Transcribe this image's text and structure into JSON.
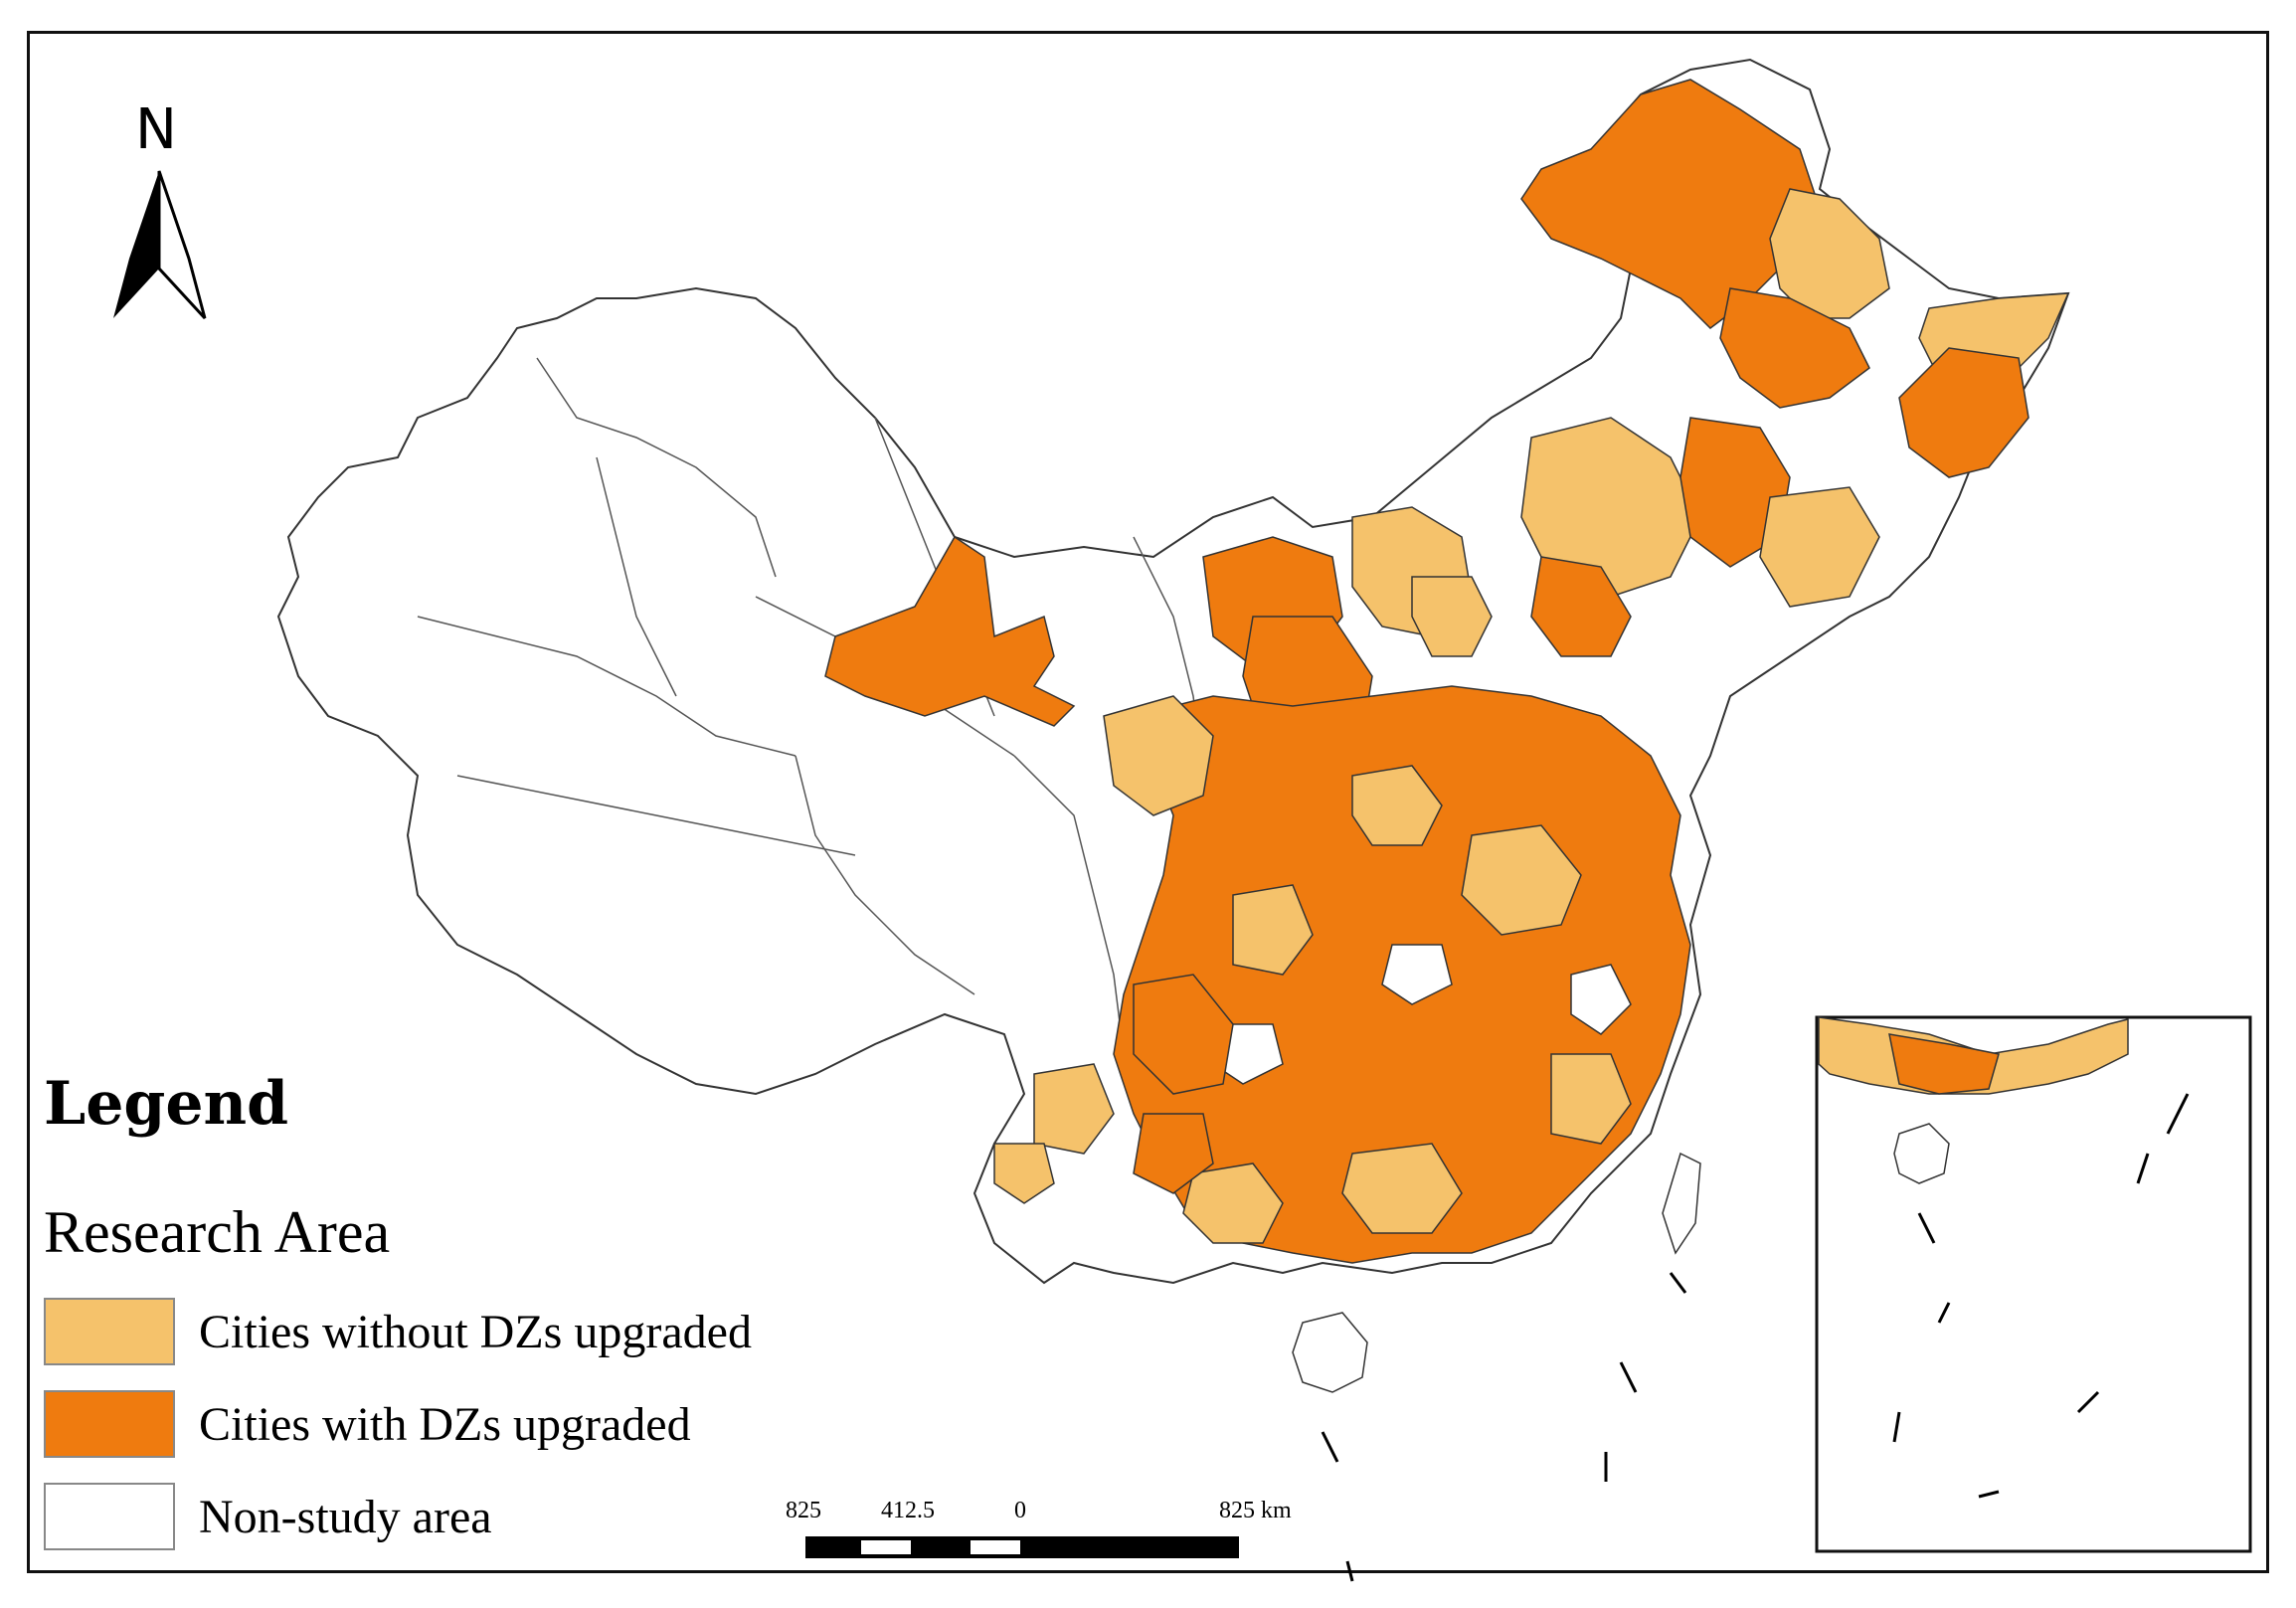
{
  "legend": {
    "title": "Legend",
    "subtitle": "Research Area",
    "items": [
      {
        "label": "Cities without DZs upgraded",
        "color": "#f5c26b"
      },
      {
        "label": "Cities with DZs upgraded",
        "color": "#ef7b0f"
      },
      {
        "label": "Non-study area",
        "color": "#ffffff"
      }
    ]
  },
  "north_arrow": {
    "label": "N",
    "icon": "north-arrow-icon"
  },
  "scale_bar": {
    "labels": [
      "825",
      "412.5",
      "0",
      "825 km"
    ]
  },
  "colors": {
    "without": "#f5c26b",
    "with": "#ef7b0f",
    "non_study": "#ffffff",
    "border": "#333333",
    "frame": "#111111"
  }
}
